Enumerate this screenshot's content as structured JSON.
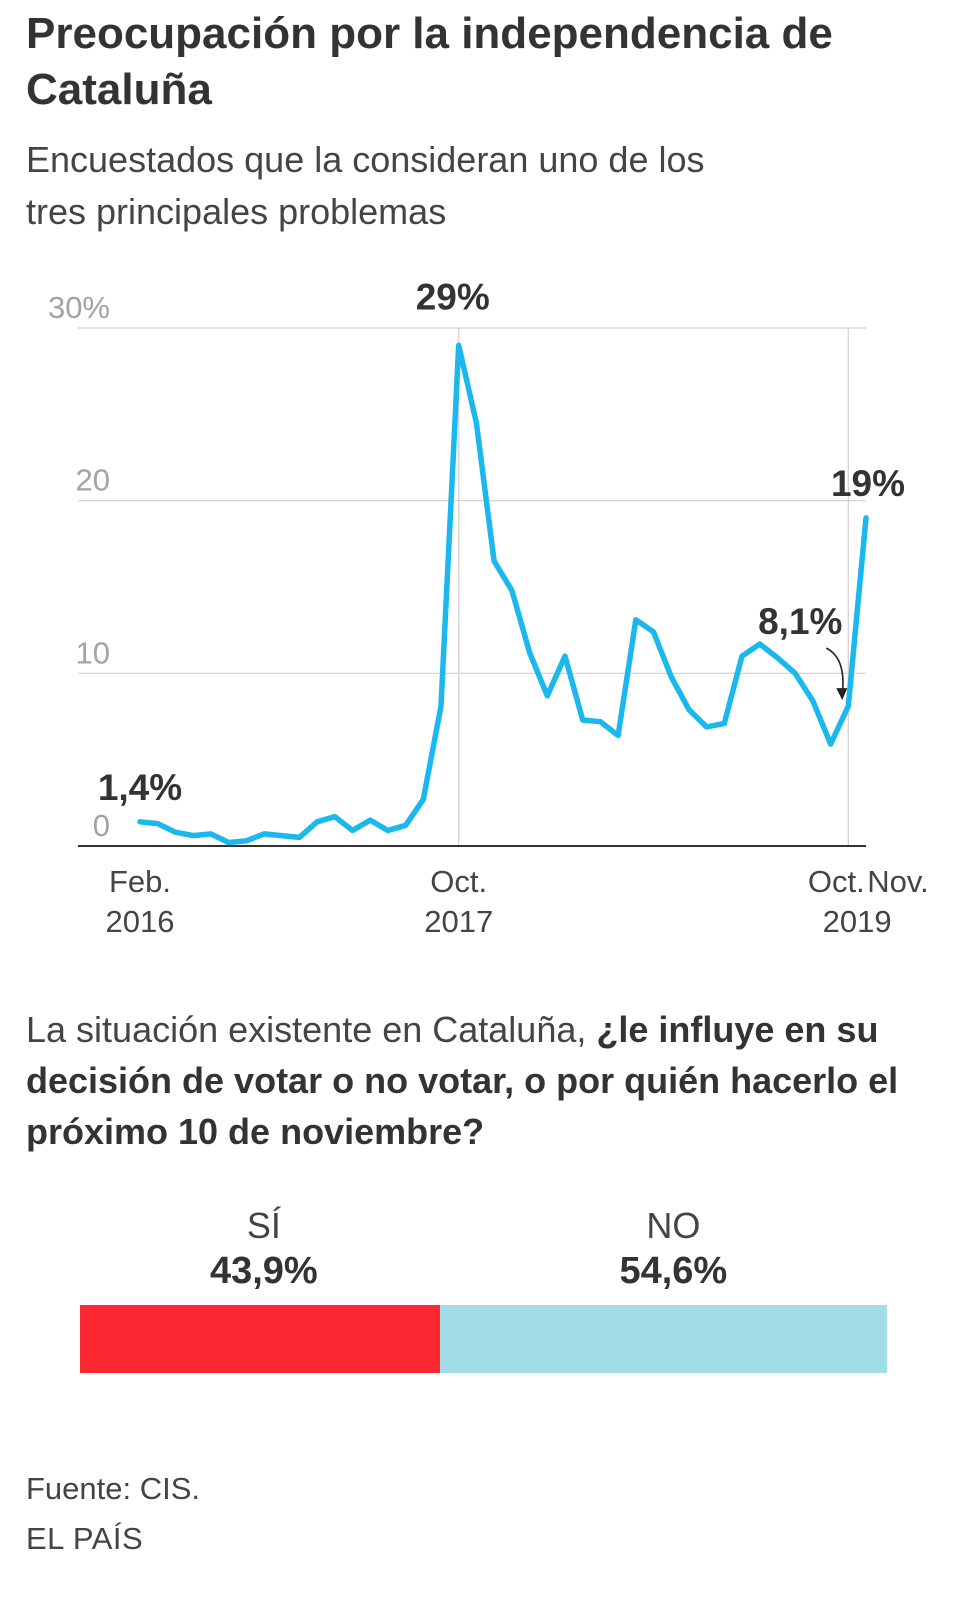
{
  "title": "Preocupación por la independencia de Cataluña",
  "subtitle": "Encuestados que la consideran uno de los tres principales problemas",
  "chart_data": {
    "type": "line",
    "title": "Preocupación por la independencia de Cataluña",
    "subtitle": "Encuestados que la consideran uno de los tres principales problemas",
    "ylabel": "%",
    "ylim": [
      0,
      30
    ],
    "yticks": [
      "30%",
      "20",
      "10",
      "0"
    ],
    "ytick_values": [
      30,
      20,
      10,
      0
    ],
    "grid": true,
    "series": [
      {
        "name": "Preocupación por la independencia",
        "color": "#1ab8ec",
        "values": [
          1.4,
          1.3,
          0.8,
          0.6,
          0.7,
          0.2,
          0.3,
          0.7,
          0.6,
          0.5,
          1.4,
          1.7,
          0.9,
          1.5,
          0.9,
          1.2,
          2.7,
          8.1,
          29.0,
          24.5,
          16.5,
          14.8,
          11.2,
          8.7,
          11.0,
          7.3,
          7.2,
          6.4,
          13.1,
          12.4,
          9.8,
          7.9,
          6.9,
          7.1,
          11.0,
          11.7,
          10.9,
          10.0,
          8.4,
          5.9,
          8.1,
          19.0
        ]
      }
    ],
    "x_labels": [
      {
        "line1": "Feb.",
        "line2": "2016",
        "index": 0
      },
      {
        "line1": "Oct.",
        "line2": "2017",
        "index": 18
      },
      {
        "line1": "Oct.",
        "line2": "",
        "index": 40
      },
      {
        "line1": "Nov.",
        "line2": "",
        "index": 41
      },
      {
        "line1": "",
        "line2": "2019",
        "index": 40.5
      }
    ],
    "annotations": [
      {
        "text": "1,4%",
        "index": 0,
        "value": 1.4
      },
      {
        "text": "29%",
        "index": 18,
        "value": 29.0
      },
      {
        "text": "8,1%",
        "index": 40,
        "value": 8.1
      },
      {
        "text": "19%",
        "index": 41,
        "value": 19.0
      }
    ],
    "reference_lines_at_index": [
      18,
      40
    ]
  },
  "question": {
    "plain": "La situación existente en Cataluña, ",
    "bold": "¿le influye en su decisión de votar o no votar, o por quién hacerlo el próximo 10 de noviembre?"
  },
  "stacked_bar": {
    "yes": {
      "label": "SÍ",
      "pct_text": "43,9%",
      "value": 43.9,
      "color": "#fb2832"
    },
    "no": {
      "label": "NO",
      "pct_text": "54,6%",
      "value": 54.6,
      "color": "#a2dce7"
    }
  },
  "source": "Fuente: CIS.",
  "brand": "EL PAÍS"
}
